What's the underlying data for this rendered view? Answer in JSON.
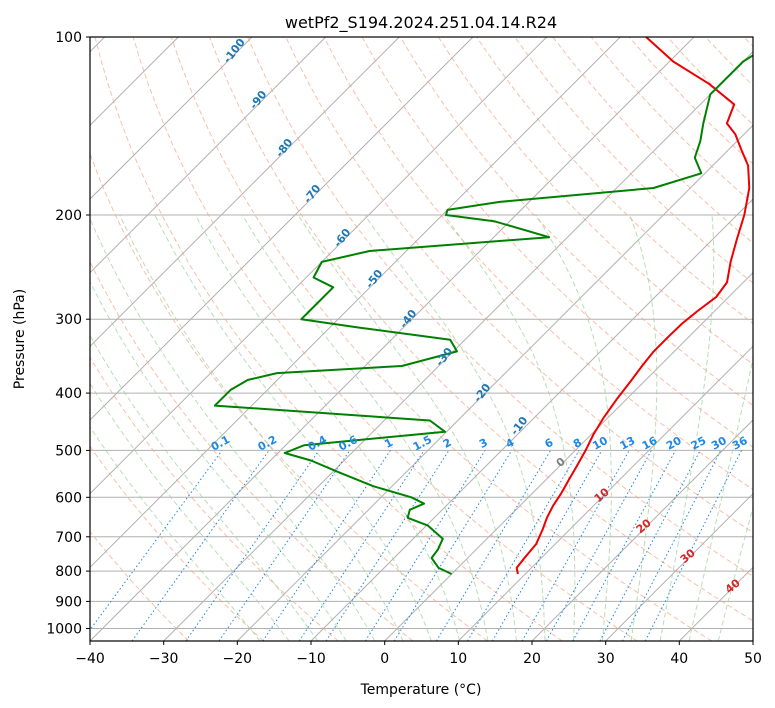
{
  "chart_data": {
    "type": "line",
    "title": "wetPf2_S194.2024.251.04.14.R24",
    "xlabel": "Temperature (°C)",
    "ylabel": "Pressure (hPa)",
    "xlim": [
      -40,
      50
    ],
    "ylim": [
      1050,
      100
    ],
    "y_scale": "log",
    "skew": true,
    "x_ticks": [
      -40,
      -30,
      -20,
      -10,
      0,
      10,
      20,
      30,
      40,
      50
    ],
    "y_ticks": [
      100,
      200,
      300,
      400,
      500,
      600,
      700,
      800,
      900,
      1000
    ],
    "grid": true,
    "series": [
      {
        "color": "#ee0000",
        "points": [
          [
            809,
            9.0
          ],
          [
            790,
            8.0
          ],
          [
            760,
            7.7
          ],
          [
            720,
            7.4
          ],
          [
            680,
            6.3
          ],
          [
            650,
            5.3
          ],
          [
            620,
            4.5
          ],
          [
            590,
            3.9
          ],
          [
            560,
            3.1
          ],
          [
            530,
            2.3
          ],
          [
            500,
            1.4
          ],
          [
            470,
            0.3
          ],
          [
            440,
            -0.6
          ],
          [
            410,
            -1.3
          ],
          [
            380,
            -1.9
          ],
          [
            360,
            -2.4
          ],
          [
            340,
            -2.8
          ],
          [
            320,
            -2.8
          ],
          [
            305,
            -2.7
          ],
          [
            290,
            -2.3
          ],
          [
            275,
            -1.7
          ],
          [
            260,
            -2.2
          ],
          [
            240,
            -4.5
          ],
          [
            220,
            -6.7
          ],
          [
            200,
            -9.0
          ],
          [
            180,
            -12.0
          ],
          [
            165,
            -15.2
          ],
          [
            155,
            -18.3
          ],
          [
            146,
            -21.2
          ],
          [
            140,
            -23.8
          ],
          [
            130,
            -25.4
          ],
          [
            120,
            -31.6
          ],
          [
            110,
            -39.5
          ],
          [
            100,
            -46.5
          ]
        ]
      },
      {
        "color": "#008000",
        "points": [
          [
            809,
            0.0
          ],
          [
            790,
            -2.6
          ],
          [
            760,
            -4.9
          ],
          [
            735,
            -5.2
          ],
          [
            705,
            -6.0
          ],
          [
            670,
            -9.8
          ],
          [
            650,
            -13.6
          ],
          [
            630,
            -14.4
          ],
          [
            615,
            -13.3
          ],
          [
            600,
            -15.9
          ],
          [
            575,
            -22.5
          ],
          [
            545,
            -29.0
          ],
          [
            520,
            -34.5
          ],
          [
            505,
            -39.1
          ],
          [
            490,
            -37.5
          ],
          [
            465,
            -20.2
          ],
          [
            445,
            -23.8
          ],
          [
            420,
            -55.0
          ],
          [
            395,
            -55.0
          ],
          [
            380,
            -54.0
          ],
          [
            370,
            -51.0
          ],
          [
            360,
            -35.0
          ],
          [
            340,
            -29.5
          ],
          [
            325,
            -32.0
          ],
          [
            310,
            -46.0
          ],
          [
            300,
            -55.0
          ],
          [
            290,
            -55.0
          ],
          [
            265,
            -55.0
          ],
          [
            255,
            -59.0
          ],
          [
            240,
            -60.0
          ],
          [
            230,
            -55.0
          ],
          [
            218,
            -32.5
          ],
          [
            205,
            -42.0
          ],
          [
            200,
            -49.5
          ],
          [
            196,
            -50.0
          ],
          [
            190,
            -44.0
          ],
          [
            180,
            -25.0
          ],
          [
            170,
            -20.5
          ],
          [
            160,
            -23.5
          ],
          [
            150,
            -25.0
          ],
          [
            140,
            -27.0
          ],
          [
            125,
            -30.0
          ],
          [
            110,
            -30.0
          ],
          [
            100,
            -28.0
          ]
        ]
      }
    ],
    "dry_adiabat_labels": [
      "-100",
      "-90",
      "-80",
      "-70",
      "-60",
      "-50",
      "-40",
      "-30",
      "-20",
      "-10"
    ],
    "moist_adiabat_labels": [
      "0",
      "10",
      "20",
      "30",
      "40"
    ],
    "mixing_ratio_labels": [
      "0.1",
      "0.2",
      "0.4",
      "0.6",
      "1",
      "1.5",
      "2",
      "3",
      "4",
      "6",
      "8",
      "10",
      "13",
      "16",
      "20",
      "25",
      "30",
      "36"
    ]
  },
  "colors": {
    "temperature": "#ee0000",
    "dewpoint": "#008000",
    "grid": "#b0b0b0",
    "dry_adiabat": "#f4a582",
    "moist_adiabat": "#d9c3a0",
    "moist_adiabat_green": "#9fd39f",
    "mixing_ratio": "#1e88e5",
    "dry_label": "#1f77b4",
    "moist_label": "#d62728",
    "zero_label": "#808080"
  }
}
